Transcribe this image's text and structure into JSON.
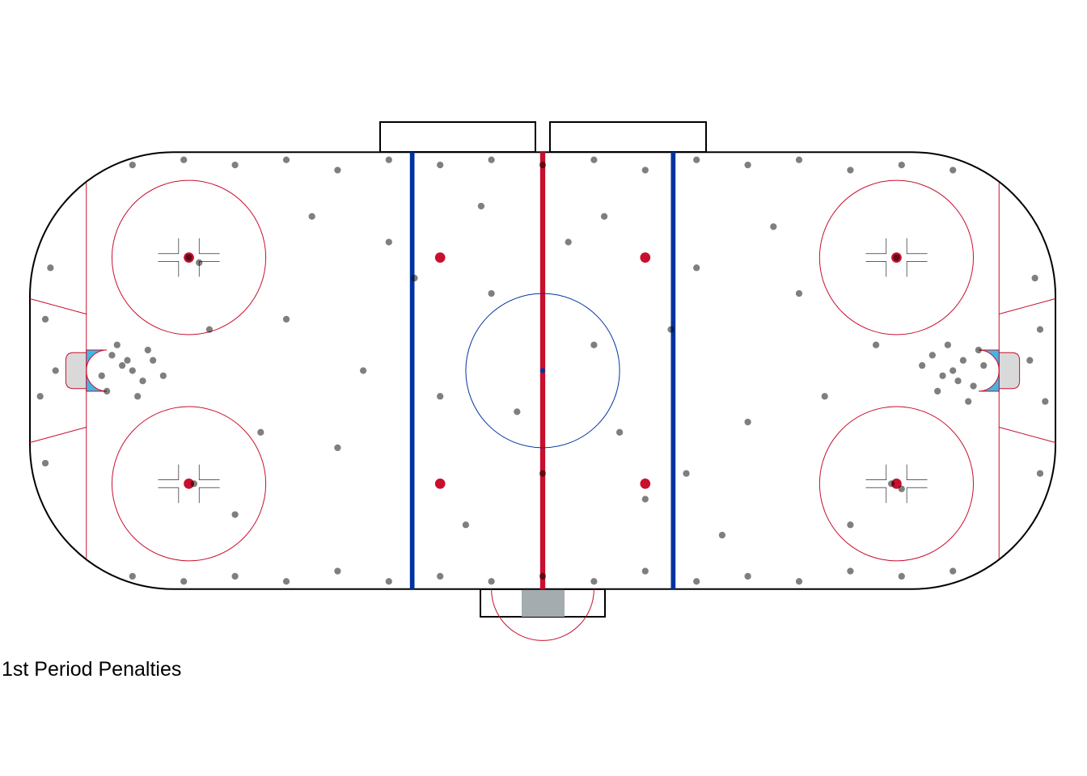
{
  "caption": "1st Period Penalties",
  "chart_data": {
    "type": "scatter",
    "title": "",
    "xlabel": "",
    "ylabel": "",
    "xlim": [
      -100,
      100
    ],
    "ylim": [
      -42.5,
      42.5
    ],
    "grid": false,
    "background": "hockey rink",
    "point_color": "#000000",
    "point_alpha": 0.5,
    "colors": {
      "red_line": "#c8102e",
      "blue_line": "#0033a0",
      "crease": "#41b6e6",
      "net": "#d9d9d9",
      "penalty_box": "#a5acaf"
    },
    "points": [
      [
        80,
        0
      ],
      [
        82,
        2
      ],
      [
        78,
        -1
      ],
      [
        84,
        -3
      ],
      [
        76,
        3
      ],
      [
        86,
        1
      ],
      [
        79,
        5
      ],
      [
        83,
        -6
      ],
      [
        77,
        -4
      ],
      [
        85,
        4
      ],
      [
        81,
        -2
      ],
      [
        74,
        1
      ],
      [
        -80,
        0
      ],
      [
        -82,
        1
      ],
      [
        -78,
        -2
      ],
      [
        -84,
        3
      ],
      [
        -76,
        2
      ],
      [
        -86,
        -1
      ],
      [
        -79,
        -5
      ],
      [
        -83,
        5
      ],
      [
        -77,
        4
      ],
      [
        -85,
        -4
      ],
      [
        -81,
        2
      ],
      [
        -74,
        -1
      ],
      [
        -80,
        40
      ],
      [
        -70,
        41
      ],
      [
        -60,
        40
      ],
      [
        -50,
        41
      ],
      [
        -40,
        39
      ],
      [
        -30,
        41
      ],
      [
        -20,
        40
      ],
      [
        -10,
        41
      ],
      [
        0,
        40
      ],
      [
        10,
        41
      ],
      [
        20,
        39
      ],
      [
        30,
        41
      ],
      [
        40,
        40
      ],
      [
        50,
        41
      ],
      [
        60,
        39
      ],
      [
        70,
        40
      ],
      [
        80,
        39
      ],
      [
        -80,
        -40
      ],
      [
        -70,
        -41
      ],
      [
        -60,
        -40
      ],
      [
        -50,
        -41
      ],
      [
        -40,
        -39
      ],
      [
        -30,
        -41
      ],
      [
        -20,
        -40
      ],
      [
        -10,
        -41
      ],
      [
        0,
        -40
      ],
      [
        10,
        -41
      ],
      [
        20,
        -39
      ],
      [
        30,
        -41
      ],
      [
        40,
        -40
      ],
      [
        50,
        -41
      ],
      [
        60,
        -39
      ],
      [
        70,
        -40
      ],
      [
        80,
        -39
      ],
      [
        -97,
        10
      ],
      [
        -98,
        -5
      ],
      [
        -96,
        20
      ],
      [
        -97,
        -18
      ],
      [
        -95,
        0
      ],
      [
        97,
        8
      ],
      [
        98,
        -6
      ],
      [
        96,
        18
      ],
      [
        97,
        -20
      ],
      [
        95,
        2
      ],
      [
        -69,
        22
      ],
      [
        -68,
        -22
      ],
      [
        69,
        22
      ],
      [
        68,
        -22
      ],
      [
        -67,
        21
      ],
      [
        70,
        -23
      ],
      [
        -50,
        10
      ],
      [
        -40,
        -15
      ],
      [
        -30,
        25
      ],
      [
        -20,
        -5
      ],
      [
        -10,
        15
      ],
      [
        0,
        -20
      ],
      [
        10,
        5
      ],
      [
        20,
        -25
      ],
      [
        30,
        20
      ],
      [
        40,
        -10
      ],
      [
        50,
        15
      ],
      [
        60,
        -30
      ],
      [
        -60,
        -28
      ],
      [
        -45,
        30
      ],
      [
        -35,
        0
      ],
      [
        -15,
        -30
      ],
      [
        5,
        25
      ],
      [
        15,
        -12
      ],
      [
        25,
        8
      ],
      [
        35,
        -32
      ],
      [
        45,
        28
      ],
      [
        55,
        -5
      ],
      [
        65,
        5
      ],
      [
        -65,
        8
      ],
      [
        -55,
        -12
      ],
      [
        -25,
        18
      ],
      [
        -5,
        -8
      ],
      [
        12,
        30
      ],
      [
        -12,
        32
      ],
      [
        28,
        -20
      ]
    ]
  }
}
